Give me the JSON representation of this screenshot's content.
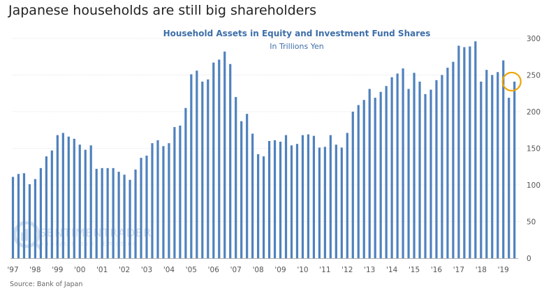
{
  "headline": "Japanese households are still big shareholders",
  "source": "Source: Bank of Japan",
  "watermark": {
    "name": "SENTIMENTRADER",
    "tagline": "Analysis over Emotion"
  },
  "colors": {
    "bar": "#4f81bd",
    "title": "#3d6ea8",
    "highlight": "#f0a500"
  },
  "chart_data": {
    "type": "bar",
    "title": "Household Assets in Equity and Investment Fund Shares",
    "subtitle": "In Trillions Yen",
    "xlabel": "",
    "ylabel": "",
    "ylim": [
      0,
      300
    ],
    "yticks": [
      0,
      50,
      100,
      150,
      200,
      250,
      300
    ],
    "y_axis_side": "right",
    "grid": true,
    "frequency": "quarterly",
    "x_tick_labels": [
      "'97",
      "'98",
      "'99",
      "'00",
      "'01",
      "'02",
      "'03",
      "'04",
      "'05",
      "'06",
      "'07",
      "'08",
      "'09",
      "'10",
      "'11",
      "'12",
      "'13",
      "'14",
      "'15",
      "'16",
      "'17",
      "'18",
      "'19"
    ],
    "series": [
      {
        "name": "Household Assets in Equity and Investment Fund Shares",
        "values": [
          111,
          115,
          116,
          101,
          108,
          123,
          139,
          147,
          168,
          171,
          166,
          163,
          155,
          148,
          154,
          122,
          123,
          123,
          123,
          118,
          114,
          107,
          121,
          137,
          140,
          157,
          161,
          153,
          157,
          179,
          181,
          205,
          251,
          256,
          241,
          244,
          267,
          271,
          282,
          265,
          220,
          187,
          197,
          170,
          142,
          139,
          160,
          161,
          159,
          168,
          154,
          156,
          168,
          169,
          167,
          151,
          152,
          168,
          155,
          151,
          171,
          200,
          209,
          216,
          231,
          219,
          227,
          235,
          247,
          252,
          259,
          231,
          253,
          241,
          224,
          230,
          243,
          250,
          260,
          268,
          290,
          288,
          289,
          296,
          241,
          257,
          250,
          254,
          270,
          219,
          241
        ]
      }
    ],
    "annotations": [
      {
        "type": "circle",
        "target": "last-bar",
        "label": ""
      }
    ]
  }
}
